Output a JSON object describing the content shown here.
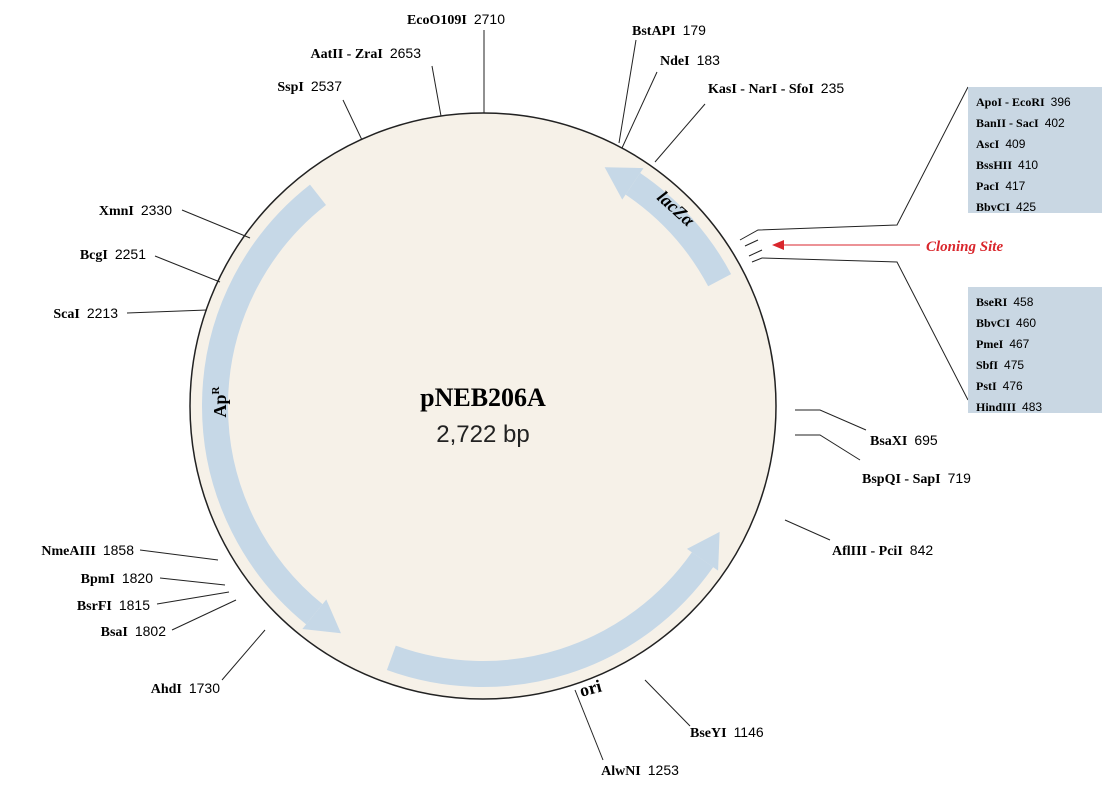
{
  "title": "pNEB206A",
  "size": "2,722 bp",
  "sites": [
    {
      "name": "EcoO109I",
      "position": 2710
    },
    {
      "name": "AatII - ZraI",
      "position": 2653
    },
    {
      "name": "SspI",
      "position": 2537
    },
    {
      "name": "XmnI",
      "position": 2330
    },
    {
      "name": "BcgI",
      "position": 2251
    },
    {
      "name": "ScaI",
      "position": 2213
    },
    {
      "name": "NmeAIII",
      "position": 1858
    },
    {
      "name": "BpmI",
      "position": 1820
    },
    {
      "name": "BsrFI",
      "position": 1815
    },
    {
      "name": "BsaI",
      "position": 1802
    },
    {
      "name": "AhdI",
      "position": 1730
    },
    {
      "name": "AlwNI",
      "position": 1253
    },
    {
      "name": "BseYI",
      "position": 1146
    },
    {
      "name": "AflIII - PciI",
      "position": 842
    },
    {
      "name": "BspQI - SapI",
      "position": 719
    },
    {
      "name": "BsaXI",
      "position": 695
    },
    {
      "name": "KasI - NarI - SfoI",
      "position": 235
    },
    {
      "name": "NdeI",
      "position": 183
    },
    {
      "name": "BstAPI",
      "position": 179
    }
  ],
  "cloning_site": {
    "label": "Cloning Site",
    "boxes": [
      [
        {
          "name": "ApoI - EcoRI",
          "position": 396
        },
        {
          "name": "BanII - SacI",
          "position": 402
        },
        {
          "name": "AscI",
          "position": 409
        },
        {
          "name": "BssHII",
          "position": 410
        },
        {
          "name": "PacI",
          "position": 417
        },
        {
          "name": "BbvCI",
          "position": 425
        }
      ],
      [
        {
          "name": "BseRI",
          "position": 458
        },
        {
          "name": "BbvCI",
          "position": 460
        },
        {
          "name": "PmeI",
          "position": 467
        },
        {
          "name": "SbfI",
          "position": 475
        },
        {
          "name": "PstI",
          "position": 476
        },
        {
          "name": "HindIII",
          "position": 483
        }
      ]
    ]
  },
  "features": [
    {
      "name": "lacZα"
    },
    {
      "name": "Ap",
      "superscript": "R"
    },
    {
      "name": "ori"
    }
  ]
}
